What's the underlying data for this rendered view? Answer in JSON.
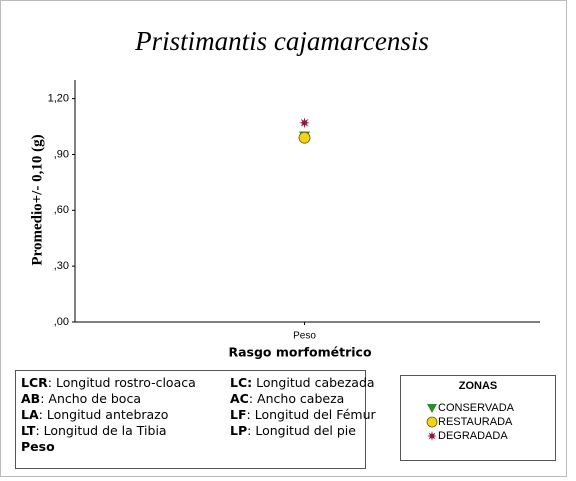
{
  "chart_data": {
    "type": "scatter",
    "title": "Pristimantis cajamarcensis",
    "y_label": "Promedio+/-  0,10 (g)",
    "x_label": "Rasgo morfométrico",
    "categories": [
      "Peso"
    ],
    "ylim": [
      0,
      1.3
    ],
    "yticks": [
      {
        "value": 0,
        "label": ",00"
      },
      {
        "value": 0.3,
        "label": ",30"
      },
      {
        "value": 0.6,
        "label": ",60"
      },
      {
        "value": 0.9,
        "label": ",90"
      },
      {
        "value": 1.2,
        "label": "1,20"
      }
    ],
    "legend_title": "ZONAS",
    "series": [
      {
        "name": "CONSERVADA",
        "color": "#2e8b2e",
        "marker": "triangle",
        "values": [
          1.0
        ]
      },
      {
        "name": "RESTAURADA",
        "color": "#f2d21b",
        "marker": "circle",
        "values": [
          0.99
        ]
      },
      {
        "name": "DEGRADADA",
        "color": "#8b1a3a",
        "marker": "star",
        "values": [
          1.07
        ]
      }
    ]
  },
  "notes": [
    {
      "abbr": "LCR",
      "text": ": Longitud rostro-cloaca"
    },
    {
      "abbr": "LC:",
      "text": " Longitud cabezada"
    },
    {
      "abbr": "AB",
      "text": ": Ancho de boca"
    },
    {
      "abbr": "AC",
      "text": ": Ancho cabeza"
    },
    {
      "abbr": "LA",
      "text": ": Longitud antebrazo"
    },
    {
      "abbr": "LF",
      "text": ": Longitud del Fémur"
    },
    {
      "abbr": "LT",
      "text": ": Longitud de la Tibia"
    },
    {
      "abbr": "LP",
      "text": ": Longitud del pie"
    },
    {
      "abbr": "Peso",
      "text": ""
    }
  ]
}
